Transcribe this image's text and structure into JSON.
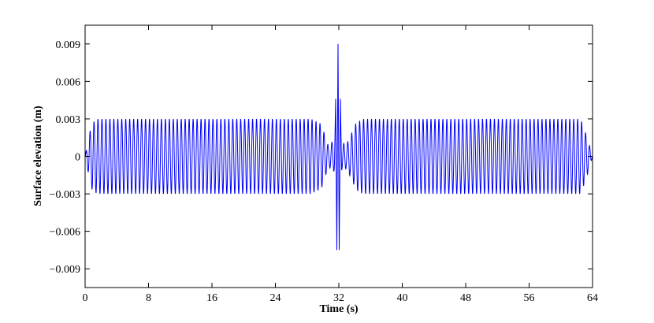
{
  "chart_data": {
    "type": "line",
    "title": "",
    "xlabel": "Time (s)",
    "ylabel": "Surface elevation (m)",
    "xlim": [
      0,
      64
    ],
    "ylim": [
      -0.0105,
      0.0105
    ],
    "xticks": [
      0,
      8,
      16,
      24,
      32,
      40,
      48,
      56,
      64
    ],
    "xtick_labels": [
      "0",
      "8",
      "16",
      "24",
      "32",
      "40",
      "48",
      "56",
      "64"
    ],
    "yticks": [
      0.009,
      0.006,
      0.003,
      0,
      -0.003,
      -0.006,
      -0.009
    ],
    "ytick_labels": [
      "0.009",
      "0.006",
      "0.003",
      "0",
      "−0.003",
      "−0.006",
      "−0.009"
    ],
    "grid": false,
    "line_color": "#0000ff",
    "series": [
      {
        "description_of_shape": "Regular oscillation with amplitude envelope",
        "carrier_period_s": 0.5,
        "envelope": [
          {
            "t": 0.0,
            "amp": 0.0
          },
          {
            "t": 0.8,
            "amp": 0.0026
          },
          {
            "t": 1.5,
            "amp": 0.003
          },
          {
            "t": 28.5,
            "amp": 0.003
          },
          {
            "t": 29.8,
            "amp": 0.0026
          },
          {
            "t": 30.7,
            "amp": 0.0008
          },
          {
            "t": 31.2,
            "amp": 0.0012
          },
          {
            "t": 33.0,
            "amp": 0.001
          },
          {
            "t": 34.2,
            "amp": 0.0027
          },
          {
            "t": 35.0,
            "amp": 0.003
          },
          {
            "t": 62.5,
            "amp": 0.003
          },
          {
            "t": 63.3,
            "amp": 0.0016
          },
          {
            "t": 64.0,
            "amp": 0.0
          }
        ],
        "peaks": [
          {
            "t": 31.6,
            "y": 0.0046
          },
          {
            "t": 31.75,
            "y": -0.0075
          },
          {
            "t": 31.9,
            "y": 0.009
          },
          {
            "t": 32.05,
            "y": -0.0075
          },
          {
            "t": 32.2,
            "y": 0.0046
          }
        ]
      }
    ]
  }
}
